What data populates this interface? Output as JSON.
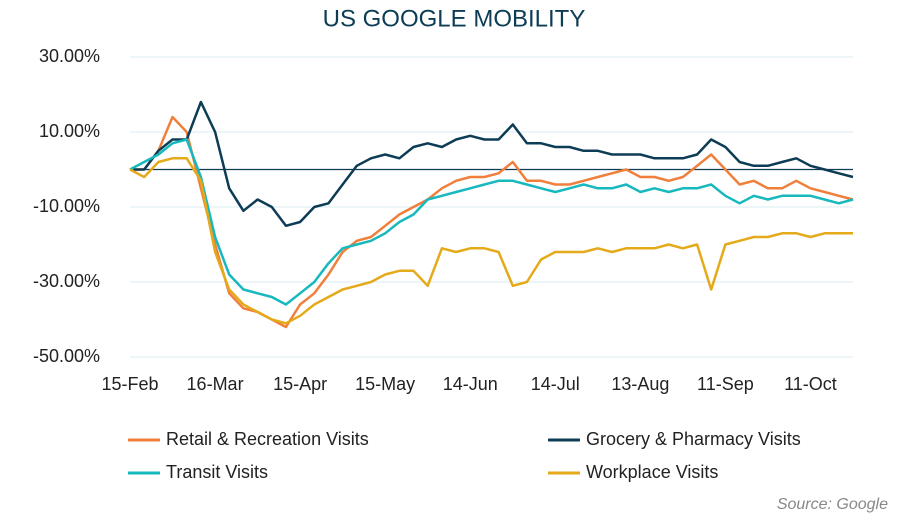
{
  "chart_data": {
    "type": "line",
    "title": "US GOOGLE MOBILITY",
    "source": "Source: Google",
    "categories": [
      "15-Feb",
      null,
      null,
      null,
      null,
      null,
      "16-Mar",
      null,
      null,
      null,
      null,
      null,
      "15-Apr",
      null,
      null,
      null,
      null,
      null,
      "15-May",
      null,
      null,
      null,
      null,
      null,
      "14-Jun",
      null,
      null,
      null,
      null,
      null,
      "14-Jul",
      null,
      null,
      null,
      null,
      null,
      "13-Aug",
      null,
      null,
      null,
      null,
      null,
      "11-Sep",
      null,
      null,
      null,
      null,
      null,
      "11-Oct",
      null,
      null,
      null
    ],
    "ylim": [
      -50,
      30
    ],
    "yticks": [
      {
        "value": -50,
        "label": "-50.00%"
      },
      {
        "value": -30,
        "label": "-30.00%"
      },
      {
        "value": -10,
        "label": "-10.00%"
      },
      {
        "value": 10,
        "label": "10.00%"
      },
      {
        "value": 30,
        "label": "30.00%"
      }
    ],
    "grid": true,
    "legend": "bottom",
    "series": [
      {
        "name": "Retail & Recreation Visits",
        "color": "#f07f3c",
        "values": [
          0,
          0,
          5,
          14,
          10,
          -5,
          -20,
          -33,
          -37,
          -38,
          -40,
          -42,
          -36,
          -33,
          -28,
          -22,
          -19,
          -18,
          -15,
          -12,
          -10,
          -8,
          -5,
          -3,
          -2,
          -2,
          -1,
          2,
          -3,
          -3,
          -4,
          -4,
          -3,
          -2,
          -1,
          0,
          -2,
          -2,
          -3,
          -2,
          1,
          4,
          0,
          -4,
          -3,
          -5,
          -5,
          -3,
          -5,
          -6,
          -7,
          -8
        ]
      },
      {
        "name": "Grocery & Pharmacy Visits",
        "color": "#0d3c55",
        "values": [
          0,
          0,
          5,
          8,
          8,
          18,
          10,
          -5,
          -11,
          -8,
          -10,
          -15,
          -14,
          -10,
          -9,
          -4,
          1,
          3,
          4,
          3,
          6,
          7,
          6,
          8,
          9,
          8,
          8,
          12,
          7,
          7,
          6,
          6,
          5,
          5,
          4,
          4,
          4,
          3,
          3,
          3,
          4,
          8,
          6,
          2,
          1,
          1,
          2,
          3,
          1,
          0,
          -1,
          -2
        ]
      },
      {
        "name": "Transit Visits",
        "color": "#17b8be",
        "values": [
          0,
          2,
          4,
          7,
          8,
          -2,
          -18,
          -28,
          -32,
          -33,
          -34,
          -36,
          -33,
          -30,
          -25,
          -21,
          -20,
          -19,
          -17,
          -14,
          -12,
          -8,
          -7,
          -6,
          -5,
          -4,
          -3,
          -3,
          -4,
          -5,
          -6,
          -5,
          -4,
          -5,
          -5,
          -4,
          -6,
          -5,
          -6,
          -5,
          -5,
          -4,
          -7,
          -9,
          -7,
          -8,
          -7,
          -7,
          -7,
          -8,
          -9,
          -8
        ]
      },
      {
        "name": "Workplace Visits",
        "color": "#e4aa1a",
        "values": [
          0,
          -2,
          2,
          3,
          3,
          -3,
          -22,
          -32,
          -36,
          -38,
          -40,
          -41,
          -39,
          -36,
          -34,
          -32,
          -31,
          -30,
          -28,
          -27,
          -27,
          -31,
          -21,
          -22,
          -21,
          -21,
          -22,
          -31,
          -30,
          -24,
          -22,
          -22,
          -22,
          -21,
          -22,
          -21,
          -21,
          -21,
          -20,
          -21,
          -20,
          -32,
          -20,
          -19,
          -18,
          -18,
          -17,
          -17,
          -18,
          -17,
          -17,
          -17
        ]
      }
    ]
  }
}
